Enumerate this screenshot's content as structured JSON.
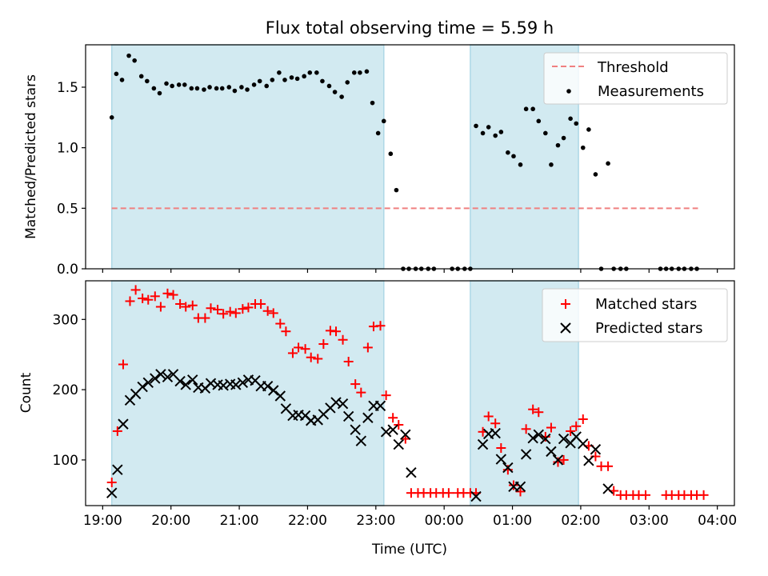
{
  "figure": {
    "title": "Flux total observing time = 5.59 h",
    "xlabel": "Time (UTC)",
    "x_ticks": [
      "19:00",
      "20:00",
      "21:00",
      "22:00",
      "23:00",
      "00:00",
      "01:00",
      "02:00",
      "03:00",
      "04:00"
    ],
    "shaded_intervals": [
      [
        "19:08",
        "23:07"
      ],
      [
        "00:23",
        "01:58"
      ]
    ],
    "shade_color": "#add8e6"
  },
  "chart_data": [
    {
      "type": "scatter",
      "ylabel": "Matched/Predicted stars",
      "ylim": [
        0,
        1.85
      ],
      "y_ticks": [
        0.0,
        0.5,
        1.0,
        1.5
      ],
      "legend_position": "top-right",
      "threshold": {
        "name": "Threshold",
        "value": 0.5,
        "x_range": [
          "19:08",
          "03:43"
        ],
        "color": "#f08080"
      },
      "series": [
        {
          "name": "Measurements",
          "marker": "dot",
          "color": "#000000",
          "points": [
            [
              "19:08",
              1.25
            ],
            [
              "19:12",
              1.61
            ],
            [
              "19:17",
              1.56
            ],
            [
              "19:23",
              1.76
            ],
            [
              "19:28",
              1.72
            ],
            [
              "19:34",
              1.59
            ],
            [
              "19:39",
              1.55
            ],
            [
              "19:45",
              1.49
            ],
            [
              "19:50",
              1.45
            ],
            [
              "19:56",
              1.53
            ],
            [
              "20:01",
              1.51
            ],
            [
              "20:07",
              1.52
            ],
            [
              "20:12",
              1.52
            ],
            [
              "20:18",
              1.49
            ],
            [
              "20:23",
              1.49
            ],
            [
              "20:29",
              1.48
            ],
            [
              "20:34",
              1.5
            ],
            [
              "20:40",
              1.49
            ],
            [
              "20:45",
              1.49
            ],
            [
              "20:51",
              1.5
            ],
            [
              "20:56",
              1.47
            ],
            [
              "21:02",
              1.5
            ],
            [
              "21:07",
              1.48
            ],
            [
              "21:13",
              1.52
            ],
            [
              "21:18",
              1.55
            ],
            [
              "21:24",
              1.51
            ],
            [
              "21:29",
              1.56
            ],
            [
              "21:35",
              1.62
            ],
            [
              "21:40",
              1.56
            ],
            [
              "21:46",
              1.58
            ],
            [
              "21:51",
              1.57
            ],
            [
              "21:57",
              1.59
            ],
            [
              "22:02",
              1.62
            ],
            [
              "22:08",
              1.62
            ],
            [
              "22:13",
              1.55
            ],
            [
              "22:19",
              1.51
            ],
            [
              "22:24",
              1.46
            ],
            [
              "22:30",
              1.42
            ],
            [
              "22:35",
              1.54
            ],
            [
              "22:41",
              1.62
            ],
            [
              "22:46",
              1.62
            ],
            [
              "22:52",
              1.63
            ],
            [
              "22:57",
              1.37
            ],
            [
              "23:02",
              1.12
            ],
            [
              "23:07",
              1.22
            ],
            [
              "23:13",
              0.95
            ],
            [
              "23:18",
              0.65
            ],
            [
              "23:24",
              0.0
            ],
            [
              "23:29",
              0.0
            ],
            [
              "23:35",
              0.0
            ],
            [
              "23:40",
              0.0
            ],
            [
              "23:46",
              0.0
            ],
            [
              "23:51",
              0.0
            ],
            [
              "00:07",
              0.0
            ],
            [
              "00:12",
              0.0
            ],
            [
              "00:18",
              0.0
            ],
            [
              "00:23",
              0.0
            ],
            [
              "00:28",
              1.18
            ],
            [
              "00:34",
              1.12
            ],
            [
              "00:39",
              1.17
            ],
            [
              "00:45",
              1.1
            ],
            [
              "00:50",
              1.13
            ],
            [
              "00:56",
              0.96
            ],
            [
              "01:01",
              0.93
            ],
            [
              "01:07",
              0.86
            ],
            [
              "01:12",
              1.32
            ],
            [
              "01:18",
              1.32
            ],
            [
              "01:23",
              1.22
            ],
            [
              "01:29",
              1.12
            ],
            [
              "01:34",
              0.86
            ],
            [
              "01:40",
              1.02
            ],
            [
              "01:45",
              1.08
            ],
            [
              "01:51",
              1.24
            ],
            [
              "01:56",
              1.2
            ],
            [
              "02:02",
              1.0
            ],
            [
              "02:07",
              1.15
            ],
            [
              "02:13",
              0.78
            ],
            [
              "02:18",
              0.0
            ],
            [
              "02:24",
              0.87
            ],
            [
              "02:29",
              0.0
            ],
            [
              "02:35",
              0.0
            ],
            [
              "02:40",
              0.0
            ],
            [
              "03:10",
              0.0
            ],
            [
              "03:15",
              0.0
            ],
            [
              "03:20",
              0.0
            ],
            [
              "03:26",
              0.0
            ],
            [
              "03:31",
              0.0
            ],
            [
              "03:37",
              0.0
            ],
            [
              "03:42",
              0.0
            ]
          ]
        }
      ]
    },
    {
      "type": "scatter",
      "ylabel": "Count",
      "ylim": [
        35,
        355
      ],
      "y_ticks": [
        100,
        200,
        300
      ],
      "legend_position": "top-right",
      "series": [
        {
          "name": "Matched stars",
          "marker": "plus",
          "color": "#ff0000",
          "points": [
            [
              "19:08",
              68
            ],
            [
              "19:13",
              141
            ],
            [
              "19:18",
              236
            ],
            [
              "19:24",
              326
            ],
            [
              "19:29",
              342
            ],
            [
              "19:35",
              330
            ],
            [
              "19:40",
              328
            ],
            [
              "19:46",
              333
            ],
            [
              "19:51",
              318
            ],
            [
              "19:57",
              337
            ],
            [
              "20:02",
              335
            ],
            [
              "20:08",
              322
            ],
            [
              "20:13",
              318
            ],
            [
              "20:19",
              320
            ],
            [
              "20:24",
              302
            ],
            [
              "20:30",
              302
            ],
            [
              "20:35",
              316
            ],
            [
              "20:41",
              314
            ],
            [
              "20:46",
              308
            ],
            [
              "20:52",
              311
            ],
            [
              "20:57",
              309
            ],
            [
              "21:03",
              315
            ],
            [
              "21:08",
              317
            ],
            [
              "21:14",
              322
            ],
            [
              "21:19",
              322
            ],
            [
              "21:25",
              312
            ],
            [
              "21:30",
              309
            ],
            [
              "21:36",
              294
            ],
            [
              "21:41",
              283
            ],
            [
              "21:47",
              252
            ],
            [
              "21:52",
              260
            ],
            [
              "21:58",
              258
            ],
            [
              "22:03",
              246
            ],
            [
              "22:09",
              244
            ],
            [
              "22:14",
              265
            ],
            [
              "22:20",
              284
            ],
            [
              "22:25",
              283
            ],
            [
              "22:31",
              271
            ],
            [
              "22:36",
              240
            ],
            [
              "22:42",
              208
            ],
            [
              "22:47",
              196
            ],
            [
              "22:53",
              260
            ],
            [
              "22:58",
              290
            ],
            [
              "23:04",
              291
            ],
            [
              "23:09",
              192
            ],
            [
              "23:15",
              160
            ],
            [
              "23:20",
              150
            ],
            [
              "23:26",
              130
            ],
            [
              "23:31",
              53
            ],
            [
              "23:37",
              53
            ],
            [
              "23:42",
              53
            ],
            [
              "23:48",
              53
            ],
            [
              "23:53",
              53
            ],
            [
              "23:59",
              53
            ],
            [
              "00:04",
              53
            ],
            [
              "00:12",
              53
            ],
            [
              "00:17",
              53
            ],
            [
              "00:23",
              53
            ],
            [
              "00:28",
              53
            ],
            [
              "00:34",
              140
            ],
            [
              "00:39",
              162
            ],
            [
              "00:45",
              152
            ],
            [
              "00:50",
              117
            ],
            [
              "00:56",
              86
            ],
            [
              "01:01",
              64
            ],
            [
              "01:07",
              55
            ],
            [
              "01:12",
              144
            ],
            [
              "01:18",
              172
            ],
            [
              "01:23",
              168
            ],
            [
              "01:29",
              133
            ],
            [
              "01:34",
              146
            ],
            [
              "01:40",
              97
            ],
            [
              "01:45",
              100
            ],
            [
              "01:51",
              141
            ],
            [
              "01:56",
              148
            ],
            [
              "02:02",
              158
            ],
            [
              "02:07",
              120
            ],
            [
              "02:13",
              105
            ],
            [
              "02:18",
              91
            ],
            [
              "02:24",
              91
            ],
            [
              "02:29",
              56
            ],
            [
              "02:35",
              50
            ],
            [
              "02:40",
              50
            ],
            [
              "02:46",
              50
            ],
            [
              "02:51",
              50
            ],
            [
              "02:57",
              50
            ],
            [
              "03:15",
              50
            ],
            [
              "03:20",
              50
            ],
            [
              "03:26",
              50
            ],
            [
              "03:31",
              50
            ],
            [
              "03:37",
              50
            ],
            [
              "03:42",
              50
            ],
            [
              "03:48",
              50
            ]
          ]
        },
        {
          "name": "Predicted stars",
          "marker": "x",
          "color": "#000000",
          "points": [
            [
              "19:08",
              53
            ],
            [
              "19:13",
              86
            ],
            [
              "19:18",
              151
            ],
            [
              "19:24",
              185
            ],
            [
              "19:29",
              194
            ],
            [
              "19:35",
              204
            ],
            [
              "19:40",
              210
            ],
            [
              "19:46",
              216
            ],
            [
              "19:51",
              222
            ],
            [
              "19:57",
              218
            ],
            [
              "20:02",
              222
            ],
            [
              "20:08",
              212
            ],
            [
              "20:13",
              207
            ],
            [
              "20:19",
              214
            ],
            [
              "20:24",
              203
            ],
            [
              "20:30",
              202
            ],
            [
              "20:35",
              209
            ],
            [
              "20:41",
              207
            ],
            [
              "20:46",
              206
            ],
            [
              "20:52",
              208
            ],
            [
              "20:57",
              207
            ],
            [
              "21:03",
              210
            ],
            [
              "21:08",
              214
            ],
            [
              "21:14",
              213
            ],
            [
              "21:19",
              205
            ],
            [
              "21:25",
              205
            ],
            [
              "21:30",
              199
            ],
            [
              "21:36",
              191
            ],
            [
              "21:41",
              173
            ],
            [
              "21:47",
              163
            ],
            [
              "21:52",
              164
            ],
            [
              "21:58",
              163
            ],
            [
              "22:03",
              156
            ],
            [
              "22:09",
              157
            ],
            [
              "22:14",
              165
            ],
            [
              "22:20",
              174
            ],
            [
              "22:25",
              182
            ],
            [
              "22:31",
              180
            ],
            [
              "22:36",
              162
            ],
            [
              "22:42",
              143
            ],
            [
              "22:47",
              127
            ],
            [
              "22:53",
              160
            ],
            [
              "22:58",
              177
            ],
            [
              "23:04",
              177
            ],
            [
              "23:09",
              140
            ],
            [
              "23:15",
              143
            ],
            [
              "23:20",
              122
            ],
            [
              "23:26",
              136
            ],
            [
              "23:31",
              82
            ],
            [
              "00:28",
              48
            ],
            [
              "00:34",
              122
            ],
            [
              "00:39",
              137
            ],
            [
              "00:45",
              138
            ],
            [
              "00:50",
              101
            ],
            [
              "00:56",
              89
            ],
            [
              "01:01",
              62
            ],
            [
              "01:07",
              62
            ],
            [
              "01:12",
              108
            ],
            [
              "01:18",
              131
            ],
            [
              "01:23",
              136
            ],
            [
              "01:29",
              130
            ],
            [
              "01:34",
              112
            ],
            [
              "01:40",
              100
            ],
            [
              "01:45",
              130
            ],
            [
              "01:51",
              124
            ],
            [
              "01:56",
              133
            ],
            [
              "02:02",
              123
            ],
            [
              "02:07",
              99
            ],
            [
              "02:13",
              115
            ],
            [
              "02:24",
              59
            ]
          ]
        }
      ]
    }
  ]
}
